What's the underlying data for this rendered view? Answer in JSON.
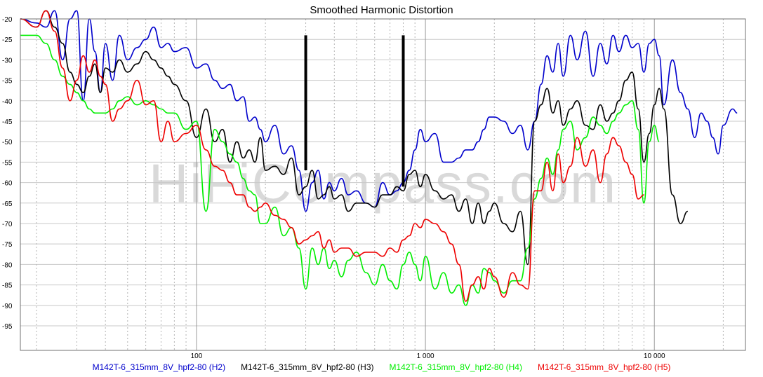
{
  "chart_data": {
    "type": "line",
    "title": "Smoothed Harmonic Distortion",
    "watermark": "HiFiCompass.com",
    "xscale": "log",
    "xlim": [
      17,
      25000
    ],
    "ylim": [
      -101,
      -20
    ],
    "yticks": [
      -20,
      -25,
      -30,
      -35,
      -40,
      -45,
      -50,
      -55,
      -60,
      -65,
      -70,
      -75,
      -80,
      -85,
      -90,
      -95
    ],
    "ytick_labels": [
      "-20",
      "-25",
      "-30",
      "-35",
      "-40",
      "-45",
      "-50",
      "-55",
      "-60",
      "-65",
      "-70",
      "-75",
      "-80",
      "-85",
      "-90",
      "-95"
    ],
    "xticks": [
      100,
      1000,
      10000
    ],
    "xtick_labels": [
      "100",
      "1 000",
      "10 000"
    ],
    "grid": true,
    "legend_position": "bottom",
    "markers": [
      {
        "x": 300,
        "y_top": -24,
        "y_bottom": -57
      },
      {
        "x": 800,
        "y_top": -24,
        "y_bottom": -61
      }
    ],
    "series": [
      {
        "name": "M142T-6_315mm_8V_hpf2-80 (H2)",
        "color": "#0000cc",
        "x": [
          17,
          20,
          22,
          24,
          26,
          28,
          30,
          32,
          34,
          36,
          38,
          40,
          43,
          46,
          50,
          55,
          60,
          65,
          70,
          75,
          80,
          90,
          100,
          110,
          120,
          130,
          140,
          150,
          160,
          170,
          180,
          190,
          200,
          220,
          240,
          260,
          280,
          300,
          320,
          340,
          360,
          380,
          400,
          430,
          460,
          500,
          550,
          600,
          650,
          700,
          750,
          800,
          850,
          900,
          950,
          1000,
          1100,
          1200,
          1300,
          1400,
          1500,
          1600,
          1700,
          1800,
          1900,
          2000,
          2200,
          2400,
          2600,
          2800,
          3000,
          3200,
          3400,
          3600,
          3800,
          4000,
          4300,
          4600,
          5000,
          5400,
          5800,
          6200,
          6600,
          7000,
          7500,
          8000,
          8500,
          9000,
          9500,
          10000,
          10500,
          11000,
          12000,
          13000,
          14000,
          15000,
          16000,
          17000,
          18000,
          19000,
          20000,
          22000,
          23000
        ],
        "y": [
          -20,
          -21,
          -22,
          -18,
          -30,
          -20,
          -18,
          -40,
          -20,
          -28,
          -38,
          -26,
          -35,
          -24,
          -30,
          -27,
          -25,
          -22,
          -27,
          -26,
          -28,
          -27,
          -32,
          -31,
          -35,
          -37,
          -36,
          -40,
          -39,
          -45,
          -44,
          -47,
          -50,
          -46,
          -53,
          -51,
          -57,
          -67,
          -60,
          -57,
          -64,
          -60,
          -62,
          -59,
          -63,
          -62,
          -65,
          -66,
          -60,
          -63,
          -62,
          -60,
          -57,
          -52,
          -47,
          -50,
          -48,
          -55,
          -55,
          -54,
          -52,
          -52,
          -50,
          -47,
          -44,
          -44,
          -45,
          -48,
          -46,
          -52,
          -45,
          -36,
          -29,
          -33,
          -26,
          -34,
          -24,
          -30,
          -23,
          -34,
          -26,
          -31,
          -24,
          -28,
          -24,
          -27,
          -26,
          -33,
          -26,
          -25,
          -29,
          -41,
          -30,
          -38,
          -42,
          -49,
          -43,
          -45,
          -49,
          -53,
          -46,
          -42,
          -43
        ]
      },
      {
        "name": "M142T-6_315mm_8V_hpf2-80 (H3)",
        "color": "#000000",
        "x": [
          17,
          20,
          22,
          24,
          26,
          28,
          30,
          32,
          34,
          36,
          38,
          40,
          43,
          46,
          50,
          55,
          60,
          65,
          70,
          75,
          80,
          90,
          100,
          110,
          120,
          130,
          140,
          150,
          160,
          170,
          180,
          190,
          200,
          220,
          240,
          260,
          280,
          300,
          320,
          340,
          360,
          380,
          400,
          430,
          460,
          500,
          550,
          600,
          650,
          700,
          750,
          800,
          850,
          900,
          950,
          1000,
          1100,
          1200,
          1300,
          1400,
          1500,
          1600,
          1700,
          1800,
          1900,
          2000,
          2200,
          2400,
          2600,
          2800,
          3000,
          3200,
          3400,
          3600,
          3800,
          4000,
          4300,
          4600,
          5000,
          5400,
          5800,
          6200,
          6600,
          7000,
          7500,
          8000,
          8500,
          9000,
          9500,
          10000,
          10500,
          11000,
          12000,
          13000,
          14000
        ],
        "y": [
          -20,
          -22,
          -18,
          -22,
          -26,
          -33,
          -36,
          -38,
          -34,
          -31,
          -38,
          -32,
          -33,
          -30,
          -33,
          -31,
          -28,
          -30,
          -32,
          -34,
          -36,
          -40,
          -49,
          -42,
          -50,
          -47,
          -55,
          -50,
          -54,
          -52,
          -55,
          -49,
          -57,
          -56,
          -58,
          -54,
          -63,
          -61,
          -57,
          -64,
          -63,
          -61,
          -64,
          -63,
          -67,
          -65,
          -65,
          -66,
          -63,
          -63,
          -61,
          -62,
          -58,
          -57,
          -61,
          -58,
          -62,
          -64,
          -63,
          -67,
          -64,
          -70,
          -65,
          -70,
          -67,
          -65,
          -70,
          -72,
          -67,
          -80,
          -45,
          -41,
          -37,
          -43,
          -40,
          -46,
          -42,
          -40,
          -46,
          -47,
          -41,
          -45,
          -43,
          -40,
          -35,
          -33,
          -42,
          -55,
          -48,
          -41,
          -37,
          -42,
          -63,
          -70,
          -67
        ]
      },
      {
        "name": "M142T-6_315mm_8V_hpf2-80 (H4)",
        "color": "#00ee00",
        "x": [
          17,
          20,
          22,
          24,
          26,
          28,
          30,
          32,
          34,
          36,
          38,
          40,
          43,
          46,
          50,
          55,
          60,
          65,
          70,
          75,
          80,
          90,
          100,
          110,
          120,
          130,
          140,
          150,
          160,
          170,
          180,
          190,
          200,
          220,
          240,
          260,
          280,
          300,
          320,
          340,
          360,
          380,
          400,
          430,
          460,
          500,
          550,
          600,
          650,
          700,
          750,
          800,
          850,
          900,
          950,
          1000,
          1100,
          1200,
          1300,
          1400,
          1500,
          1600,
          1700,
          1800,
          1900,
          2000,
          2200,
          2400,
          2600,
          2800,
          3000,
          3200,
          3400,
          3600,
          3800,
          4000,
          4300,
          4600,
          5000,
          5400,
          5800,
          6200,
          6600,
          7000,
          7500,
          8000,
          8500,
          9000,
          9500,
          10000,
          10500
        ],
        "y": [
          -24,
          -24,
          -26,
          -30,
          -34,
          -36,
          -38,
          -40,
          -42,
          -43,
          -43,
          -43,
          -42,
          -40,
          -39,
          -41,
          -40,
          -41,
          -42,
          -43,
          -43,
          -47,
          -45,
          -67,
          -47,
          -50,
          -53,
          -55,
          -59,
          -62,
          -63,
          -70,
          -70,
          -66,
          -73,
          -71,
          -76,
          -86,
          -76,
          -80,
          -76,
          -81,
          -79,
          -83,
          -79,
          -77,
          -82,
          -85,
          -80,
          -84,
          -86,
          -80,
          -77,
          -80,
          -84,
          -78,
          -86,
          -82,
          -87,
          -85,
          -90,
          -85,
          -87,
          -81,
          -82,
          -84,
          -87,
          -84,
          -84,
          -76,
          -64,
          -59,
          -54,
          -58,
          -52,
          -47,
          -45,
          -52,
          -49,
          -44,
          -46,
          -48,
          -45,
          -43,
          -41,
          -40,
          -47,
          -65,
          -50,
          -46,
          -50
        ]
      },
      {
        "name": "M142T-6_315mm_8V_hpf2-80 (H5)",
        "color": "#ee0000",
        "x": [
          17,
          20,
          22,
          24,
          26,
          28,
          30,
          32,
          34,
          36,
          38,
          40,
          43,
          46,
          50,
          55,
          60,
          65,
          70,
          75,
          80,
          90,
          100,
          110,
          120,
          130,
          140,
          150,
          160,
          170,
          180,
          190,
          200,
          220,
          240,
          260,
          280,
          300,
          320,
          340,
          360,
          380,
          400,
          430,
          460,
          500,
          550,
          600,
          650,
          700,
          750,
          800,
          850,
          900,
          950,
          1000,
          1100,
          1200,
          1300,
          1400,
          1500,
          1600,
          1700,
          1800,
          1900,
          2000,
          2200,
          2400,
          2600,
          2800,
          3000,
          3200,
          3400,
          3600,
          3800,
          4000,
          4300,
          4600,
          5000,
          5400,
          5800,
          6200,
          6600,
          7000,
          7500,
          8000,
          8500,
          9000
        ],
        "y": [
          -20,
          -22,
          -18,
          -23,
          -32,
          -40,
          -35,
          -29,
          -33,
          -30,
          -34,
          -36,
          -45,
          -42,
          -40,
          -35,
          -41,
          -40,
          -50,
          -45,
          -50,
          -48,
          -46,
          -52,
          -56,
          -57,
          -60,
          -63,
          -63,
          -66,
          -67,
          -66,
          -65,
          -68,
          -69,
          -71,
          -75,
          -74,
          -73,
          -72,
          -76,
          -74,
          -77,
          -76,
          -76,
          -78,
          -77,
          -77,
          -78,
          -76,
          -77,
          -74,
          -73,
          -70,
          -71,
          -69,
          -70,
          -72,
          -75,
          -80,
          -89,
          -85,
          -83,
          -86,
          -81,
          -83,
          -88,
          -82,
          -85,
          -86,
          -62,
          -62,
          -55,
          -62,
          -53,
          -60,
          -56,
          -49,
          -56,
          -52,
          -60,
          -53,
          -49,
          -51,
          -55,
          -58,
          -64,
          -63
        ]
      }
    ]
  }
}
